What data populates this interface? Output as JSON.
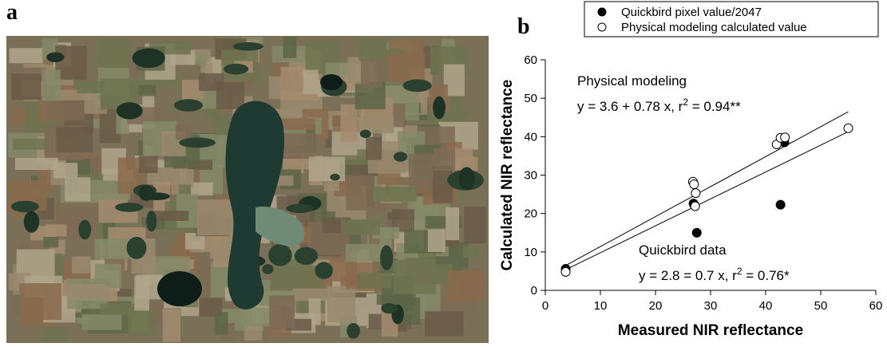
{
  "panel_labels": [
    "a",
    "b"
  ],
  "chart_data": {
    "type": "scatter",
    "x_label": "Measured NIR reflectance",
    "y_label": "Calculated NIR reflectance",
    "xlim": [
      0,
      60
    ],
    "xticks": [
      0,
      10,
      20,
      30,
      40,
      50,
      60
    ],
    "ylim": [
      0,
      60
    ],
    "yticks": [
      0,
      10,
      20,
      30,
      40,
      50,
      60
    ],
    "legend": "top-right",
    "series": [
      {
        "name": "Quickbird pixel value/2047",
        "color": "#000000",
        "filled": true,
        "x": [
          3.7,
          26.9,
          27.1,
          27.5,
          42.7,
          43.4
        ],
        "values": [
          5.6,
          22.6,
          22.1,
          15.0,
          22.3,
          38.5
        ]
      },
      {
        "name": "Physical modeling calculated value",
        "color": "#000000",
        "filled": false,
        "x": [
          3.7,
          26.8,
          27.0,
          27.3,
          27.2,
          42.0,
          42.7,
          43.5,
          55.0
        ],
        "values": [
          4.8,
          28.3,
          27.6,
          25.3,
          21.9,
          38.0,
          39.7,
          39.8,
          42.2
        ]
      }
    ],
    "fits": [
      {
        "label": "Physical modeling",
        "equation": [
          "y = 3.6 + 0.78 x, r",
          "2",
          " = 0.94**"
        ],
        "intercept": 3.6,
        "slope": 0.78,
        "xrange": [
          3.7,
          55.0
        ]
      },
      {
        "label": "Quickbird data",
        "equation": [
          "y = 2.8 = 0.7 x, r",
          "2",
          " = 0.76*"
        ],
        "intercept": 2.8,
        "slope": 0.7,
        "xrange": [
          3.7,
          55.0
        ]
      }
    ]
  }
}
